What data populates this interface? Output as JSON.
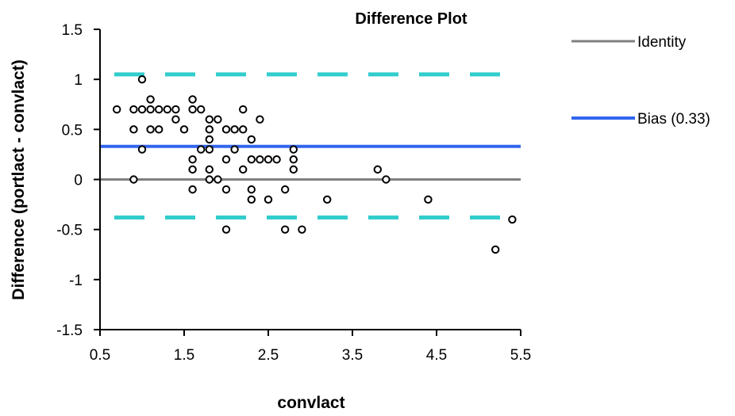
{
  "chart_data": {
    "type": "scatter",
    "title": "Difference Plot",
    "xlabel": "convlact",
    "ylabel": "Difference (portlact - convlact)",
    "xlim": [
      0.5,
      5.5
    ],
    "ylim": [
      -1.5,
      1.5
    ],
    "xticks": [
      "0.5",
      "1.5",
      "2.5",
      "3.5",
      "4.5",
      "5.5"
    ],
    "yticks": [
      "1.5",
      "1",
      "0.5",
      "0",
      "-0.5",
      "-1",
      "-1.5"
    ],
    "grid": false,
    "legend_position": "right",
    "reference_lines": [
      {
        "name": "Identity",
        "y": 0,
        "color": "#808080",
        "style": "solid",
        "in_legend": true
      },
      {
        "name": "Bias (0.33)",
        "y": 0.33,
        "color": "#3366ee",
        "style": "solid",
        "in_legend": true
      },
      {
        "name": "",
        "y": 1.05,
        "color": "#33cccc",
        "style": "dashed",
        "in_legend": false
      },
      {
        "name": "",
        "y": -0.38,
        "color": "#33cccc",
        "style": "dashed",
        "in_legend": false
      }
    ],
    "series": [
      {
        "name": "",
        "marker": "open-circle",
        "points": [
          [
            0.7,
            0.7
          ],
          [
            0.9,
            0.7
          ],
          [
            0.9,
            0.5
          ],
          [
            0.9,
            0.0
          ],
          [
            1.0,
            1.0
          ],
          [
            1.0,
            0.7
          ],
          [
            1.0,
            0.3
          ],
          [
            1.1,
            0.8
          ],
          [
            1.1,
            0.7
          ],
          [
            1.1,
            0.5
          ],
          [
            1.2,
            0.7
          ],
          [
            1.2,
            0.5
          ],
          [
            1.3,
            0.7
          ],
          [
            1.4,
            0.7
          ],
          [
            1.4,
            0.6
          ],
          [
            1.5,
            0.5
          ],
          [
            1.6,
            0.8
          ],
          [
            1.6,
            0.7
          ],
          [
            1.6,
            0.2
          ],
          [
            1.6,
            0.1
          ],
          [
            1.6,
            -0.1
          ],
          [
            1.7,
            0.7
          ],
          [
            1.7,
            0.3
          ],
          [
            1.8,
            0.6
          ],
          [
            1.8,
            0.5
          ],
          [
            1.8,
            0.4
          ],
          [
            1.8,
            0.3
          ],
          [
            1.8,
            0.1
          ],
          [
            1.8,
            0.0
          ],
          [
            1.9,
            0.6
          ],
          [
            1.9,
            0.0
          ],
          [
            2.0,
            0.5
          ],
          [
            2.0,
            0.2
          ],
          [
            2.0,
            -0.1
          ],
          [
            2.0,
            -0.5
          ],
          [
            2.1,
            0.5
          ],
          [
            2.1,
            0.3
          ],
          [
            2.2,
            0.7
          ],
          [
            2.2,
            0.5
          ],
          [
            2.2,
            0.1
          ],
          [
            2.3,
            0.4
          ],
          [
            2.3,
            0.2
          ],
          [
            2.3,
            -0.1
          ],
          [
            2.3,
            -0.2
          ],
          [
            2.4,
            0.6
          ],
          [
            2.4,
            0.2
          ],
          [
            2.5,
            0.2
          ],
          [
            2.5,
            -0.2
          ],
          [
            2.6,
            0.2
          ],
          [
            2.7,
            -0.1
          ],
          [
            2.7,
            -0.5
          ],
          [
            2.8,
            0.3
          ],
          [
            2.8,
            0.2
          ],
          [
            2.8,
            0.1
          ],
          [
            2.9,
            -0.5
          ],
          [
            3.2,
            -0.2
          ],
          [
            3.8,
            0.1
          ],
          [
            3.9,
            0.0
          ],
          [
            4.4,
            -0.2
          ],
          [
            5.2,
            -0.7
          ],
          [
            5.4,
            -0.4
          ]
        ]
      }
    ]
  }
}
